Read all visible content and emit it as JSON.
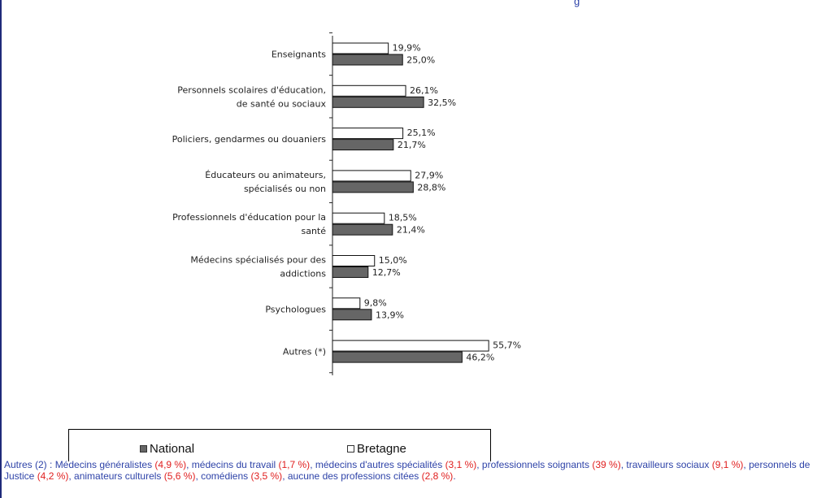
{
  "header": {
    "fragment": "g"
  },
  "colors": {
    "national": "#666666",
    "bretagne": "#ffffff",
    "footnote_text": "#2e43a8",
    "footnote_numbers": "#e02020"
  },
  "chart_data": {
    "type": "bar",
    "orientation": "horizontal",
    "categories": [
      "Enseignants",
      "Personnels scolaires d'éducation,\nde santé ou sociaux",
      "Policiers, gendarmes ou douaniers",
      "Éducateurs ou animateurs,\nspécialisés ou non",
      "Professionnels d'éducation pour la\nsanté",
      "Médecins spécialisés pour des\naddictions",
      "Psychologues",
      "Autres (*)"
    ],
    "series": [
      {
        "name": "Bretagne",
        "values": [
          19.9,
          26.1,
          25.1,
          27.9,
          18.5,
          15.0,
          9.8,
          55.7
        ],
        "labels": [
          "19,9%",
          "26,1%",
          "25,1%",
          "27,9%",
          "18,5%",
          "15,0%",
          "9,8%",
          "55,7%"
        ]
      },
      {
        "name": "National",
        "values": [
          25.0,
          32.5,
          21.7,
          28.8,
          21.4,
          12.7,
          13.9,
          46.2
        ],
        "labels": [
          "25,0%",
          "32,5%",
          "21,7%",
          "28,8%",
          "21,4%",
          "12,7%",
          "13,9%",
          "46,2%"
        ]
      }
    ],
    "xlim": [
      0,
      60
    ],
    "grid": false,
    "legend": {
      "placement": "bottom",
      "entries": [
        "National",
        "Bretagne"
      ]
    }
  },
  "footnote": {
    "prefix": "Autres (2) : ",
    "items": [
      {
        "label": "Médecins généralistes",
        "value": "(4,9 %)"
      },
      {
        "label": "médecins du travail",
        "value": "(1,7 %)"
      },
      {
        "label": "médecins d'autres spécialités",
        "value": "(3,1 %)"
      },
      {
        "label": "professionnels soignants",
        "value": "(39 %)"
      },
      {
        "label": "travailleurs sociaux",
        "value": "(9,1 %)"
      },
      {
        "label": "personnels de Justice",
        "value": "(4,2 %)"
      },
      {
        "label": "animateurs culturels",
        "value": "(5,6 %)"
      },
      {
        "label": "comédiens",
        "value": "(3,5 %)"
      },
      {
        "label": "aucune des professions citées",
        "value": "(2,8 %)"
      }
    ],
    "suffix": "."
  }
}
